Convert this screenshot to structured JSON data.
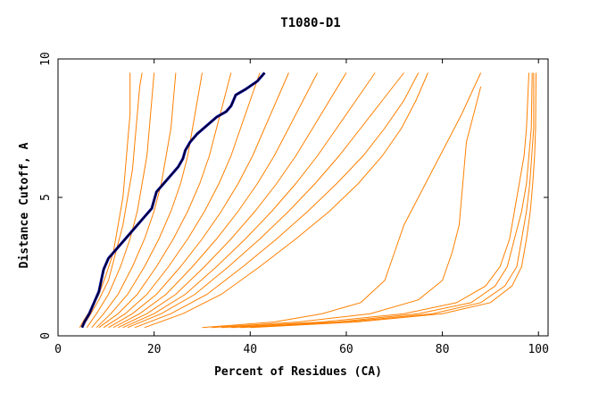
{
  "chart_data": {
    "type": "line",
    "title": "T1080-D1",
    "xlabel": "Percent of Residues (CA)",
    "ylabel": "Distance Cutoff, A",
    "xlim": [
      0,
      102
    ],
    "ylim": [
      0,
      10
    ],
    "xticks": [
      0,
      20,
      40,
      60,
      80,
      100
    ],
    "yticks": [
      0,
      5,
      10
    ],
    "colors": {
      "models": "#ff8000",
      "highlight": "#000099",
      "axis": "#000000"
    },
    "highlight_series": {
      "x": [
        5.0,
        5.5,
        6.5,
        7.5,
        8.5,
        9.0,
        9.5,
        10.5,
        12.0,
        14.0,
        16.0,
        18.0,
        19.5,
        20.0,
        20.5,
        22.0,
        23.5,
        25.0,
        26.0,
        26.5,
        27.5,
        29.0,
        31.0,
        33.0,
        35.0,
        36.0,
        36.5,
        37.0,
        39.0,
        41.5,
        43.0
      ],
      "y": [
        0.3,
        0.5,
        0.8,
        1.2,
        1.6,
        2.0,
        2.4,
        2.8,
        3.1,
        3.5,
        3.9,
        4.3,
        4.6,
        4.9,
        5.2,
        5.5,
        5.8,
        6.1,
        6.4,
        6.7,
        7.0,
        7.3,
        7.6,
        7.9,
        8.1,
        8.3,
        8.5,
        8.7,
        8.9,
        9.2,
        9.5
      ]
    },
    "model_series": [
      {
        "x": [
          4.5,
          5.5,
          7.0,
          8.5,
          10.0,
          11.5,
          12.5,
          13.5,
          14.0,
          14.5,
          15.0,
          15.0,
          15.0
        ],
        "y": [
          0.3,
          0.6,
          1.0,
          1.5,
          2.2,
          3.0,
          4.0,
          5.0,
          6.0,
          7.0,
          8.0,
          9.0,
          9.5
        ]
      },
      {
        "x": [
          5.0,
          6.5,
          8.5,
          10.5,
          12.0,
          13.5,
          14.5,
          15.5,
          16.0,
          16.5,
          17.0,
          17.5
        ],
        "y": [
          0.3,
          0.7,
          1.3,
          2.0,
          3.0,
          4.0,
          5.0,
          6.0,
          7.0,
          8.0,
          9.0,
          9.5
        ]
      },
      {
        "x": [
          6.0,
          8.0,
          10.5,
          13.0,
          15.0,
          16.5,
          17.5,
          18.5,
          19.0,
          19.5,
          20.0
        ],
        "y": [
          0.3,
          0.8,
          1.5,
          2.5,
          3.5,
          4.5,
          5.5,
          6.5,
          7.5,
          8.5,
          9.5
        ]
      },
      {
        "x": [
          7.0,
          9.5,
          12.5,
          15.5,
          18.0,
          20.0,
          21.5,
          22.5,
          23.5,
          24.0,
          24.5
        ],
        "y": [
          0.3,
          0.8,
          1.5,
          2.5,
          3.5,
          4.5,
          5.5,
          6.5,
          7.5,
          8.5,
          9.5
        ]
      },
      {
        "x": [
          8.0,
          11.0,
          14.5,
          18.0,
          21.0,
          23.5,
          25.5,
          27.0,
          28.0,
          29.0,
          30.0
        ],
        "y": [
          0.3,
          0.8,
          1.5,
          2.5,
          3.5,
          4.5,
          5.5,
          6.5,
          7.5,
          8.5,
          9.5
        ]
      },
      {
        "x": [
          8.5,
          12.5,
          16.5,
          20.5,
          24.0,
          27.0,
          29.5,
          31.5,
          33.0,
          34.5,
          36.0
        ],
        "y": [
          0.3,
          0.8,
          1.5,
          2.5,
          3.5,
          4.5,
          5.5,
          6.5,
          7.5,
          8.5,
          9.5
        ]
      },
      {
        "x": [
          9.5,
          14.0,
          18.5,
          23.0,
          27.0,
          30.5,
          33.5,
          36.0,
          38.0,
          40.0,
          42.0
        ],
        "y": [
          0.3,
          0.8,
          1.5,
          2.5,
          3.5,
          4.5,
          5.5,
          6.5,
          7.5,
          8.5,
          9.5
        ]
      },
      {
        "x": [
          10.5,
          15.5,
          20.5,
          25.5,
          30.0,
          34.0,
          37.5,
          40.5,
          43.0,
          45.5,
          48.0
        ],
        "y": [
          0.3,
          0.8,
          1.5,
          2.5,
          3.5,
          4.5,
          5.5,
          6.5,
          7.5,
          8.5,
          9.5
        ]
      },
      {
        "x": [
          11.5,
          17.0,
          22.5,
          28.0,
          33.0,
          37.5,
          41.5,
          45.0,
          48.0,
          51.0,
          54.0
        ],
        "y": [
          0.3,
          0.8,
          1.5,
          2.5,
          3.5,
          4.5,
          5.5,
          6.5,
          7.5,
          8.5,
          9.5
        ]
      },
      {
        "x": [
          12.5,
          18.5,
          24.5,
          30.5,
          36.0,
          41.0,
          45.5,
          49.5,
          53.0,
          56.5,
          60.0
        ],
        "y": [
          0.3,
          0.8,
          1.5,
          2.5,
          3.5,
          4.5,
          5.5,
          6.5,
          7.5,
          8.5,
          9.5
        ]
      },
      {
        "x": [
          13.5,
          20.0,
          26.5,
          33.0,
          39.0,
          44.5,
          49.5,
          54.0,
          58.0,
          62.0,
          66.0
        ],
        "y": [
          0.3,
          0.8,
          1.5,
          2.5,
          3.5,
          4.5,
          5.5,
          6.5,
          7.5,
          8.5,
          9.5
        ]
      },
      {
        "x": [
          14.5,
          21.5,
          28.5,
          35.5,
          42.0,
          48.0,
          53.5,
          58.5,
          63.0,
          67.5,
          72.0
        ],
        "y": [
          0.3,
          0.8,
          1.5,
          2.5,
          3.5,
          4.5,
          5.5,
          6.5,
          7.5,
          8.5,
          9.5
        ]
      },
      {
        "x": [
          16.0,
          23.5,
          31.0,
          38.5,
          45.5,
          52.0,
          58.0,
          63.5,
          68.0,
          72.0,
          75.0
        ],
        "y": [
          0.3,
          0.8,
          1.5,
          2.5,
          3.5,
          4.5,
          5.5,
          6.5,
          7.5,
          8.5,
          9.5
        ]
      },
      {
        "x": [
          18.0,
          26.0,
          34.0,
          42.0,
          49.5,
          56.5,
          62.5,
          67.5,
          71.5,
          74.5,
          77.0
        ],
        "y": [
          0.3,
          0.8,
          1.5,
          2.5,
          3.5,
          4.5,
          5.5,
          6.5,
          7.5,
          8.5,
          9.5
        ]
      },
      {
        "x": [
          30.0,
          45.0,
          55.0,
          63.0,
          68.0,
          70.0,
          72.0,
          75.0,
          78.0,
          81.0,
          84.0,
          88.0
        ],
        "y": [
          0.3,
          0.5,
          0.8,
          1.2,
          2.0,
          3.0,
          4.0,
          5.0,
          6.0,
          7.0,
          8.0,
          9.5
        ]
      },
      {
        "x": [
          32.0,
          50.0,
          65.0,
          75.0,
          80.0,
          82.0,
          83.5,
          84.0,
          84.5,
          85.0,
          86.5,
          88.0
        ],
        "y": [
          0.3,
          0.5,
          0.8,
          1.3,
          2.0,
          3.0,
          4.0,
          5.0,
          6.0,
          7.0,
          8.0,
          9.0
        ]
      },
      {
        "x": [
          34.0,
          55.0,
          72.0,
          83.0,
          89.0,
          92.0,
          94.0,
          95.0,
          96.0,
          97.0,
          97.5,
          98.0
        ],
        "y": [
          0.3,
          0.5,
          0.8,
          1.2,
          1.8,
          2.5,
          3.5,
          4.5,
          5.5,
          6.5,
          7.5,
          9.5
        ]
      },
      {
        "x": [
          36.0,
          58.0,
          75.0,
          86.0,
          91.0,
          93.5,
          95.0,
          96.5,
          97.5,
          98.0,
          98.5,
          98.7
        ],
        "y": [
          0.3,
          0.5,
          0.8,
          1.2,
          1.8,
          2.5,
          3.5,
          4.5,
          5.5,
          6.5,
          7.5,
          9.5
        ]
      },
      {
        "x": [
          38.0,
          60.0,
          78.0,
          88.0,
          93.0,
          95.5,
          96.5,
          97.5,
          98.2,
          98.6,
          99.0,
          99.0
        ],
        "y": [
          0.3,
          0.5,
          0.8,
          1.2,
          1.8,
          2.5,
          3.5,
          4.5,
          5.5,
          6.5,
          7.5,
          9.5
        ]
      },
      {
        "x": [
          40.0,
          62.0,
          80.0,
          90.0,
          94.5,
          96.5,
          97.5,
          98.3,
          98.8,
          99.2,
          99.4,
          99.5
        ],
        "y": [
          0.3,
          0.5,
          0.8,
          1.2,
          1.8,
          2.5,
          3.5,
          4.5,
          5.5,
          6.5,
          7.5,
          9.5
        ]
      }
    ]
  }
}
